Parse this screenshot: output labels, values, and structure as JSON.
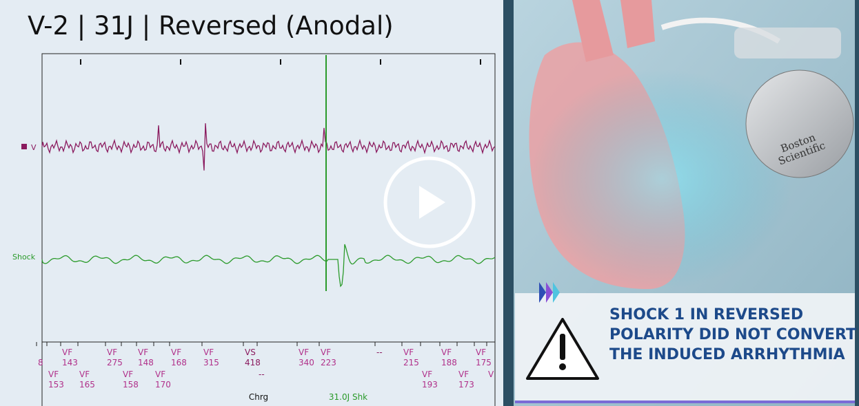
{
  "header": {
    "title": "V-2 | 31J | Reversed (Anodal)"
  },
  "channels": [
    "V",
    "Shock"
  ],
  "markers": {
    "row1": [
      {
        "value": "8"
      },
      {
        "label": "VF",
        "value": "143"
      },
      {
        "label": "VF",
        "value": "275"
      },
      {
        "label": "VF",
        "value": "148"
      },
      {
        "label": "VF",
        "value": "168"
      },
      {
        "label": "VF",
        "value": "315"
      },
      {
        "label": "VS",
        "value": "418"
      },
      {
        "label": "VF",
        "value": "340"
      },
      {
        "label": "VF",
        "value": "223"
      },
      {
        "label": "--"
      },
      {
        "label": "VF",
        "value": "215"
      },
      {
        "label": "VF",
        "value": "188"
      },
      {
        "label": "VF",
        "value": "175"
      }
    ],
    "row2": [
      {
        "label": "VF",
        "value": "153"
      },
      {
        "label": "VF",
        "value": "165"
      },
      {
        "label": "VF",
        "value": "158"
      },
      {
        "label": "VF",
        "value": "170"
      },
      {
        "label": "--"
      },
      {
        "label": "VF",
        "value": "193"
      },
      {
        "label": "VF",
        "value": "173"
      },
      {
        "label": "V"
      }
    ]
  },
  "events": [
    "Chrg",
    "31.0J Shk"
  ],
  "device": {
    "brand": [
      "Boston",
      "Scientific"
    ]
  },
  "warning": {
    "lines": [
      "SHOCK 1 IN REVERSED",
      "POLARITY DID NOT CONVERT",
      "THE INDUCED ARRHYTHMIA"
    ]
  }
}
